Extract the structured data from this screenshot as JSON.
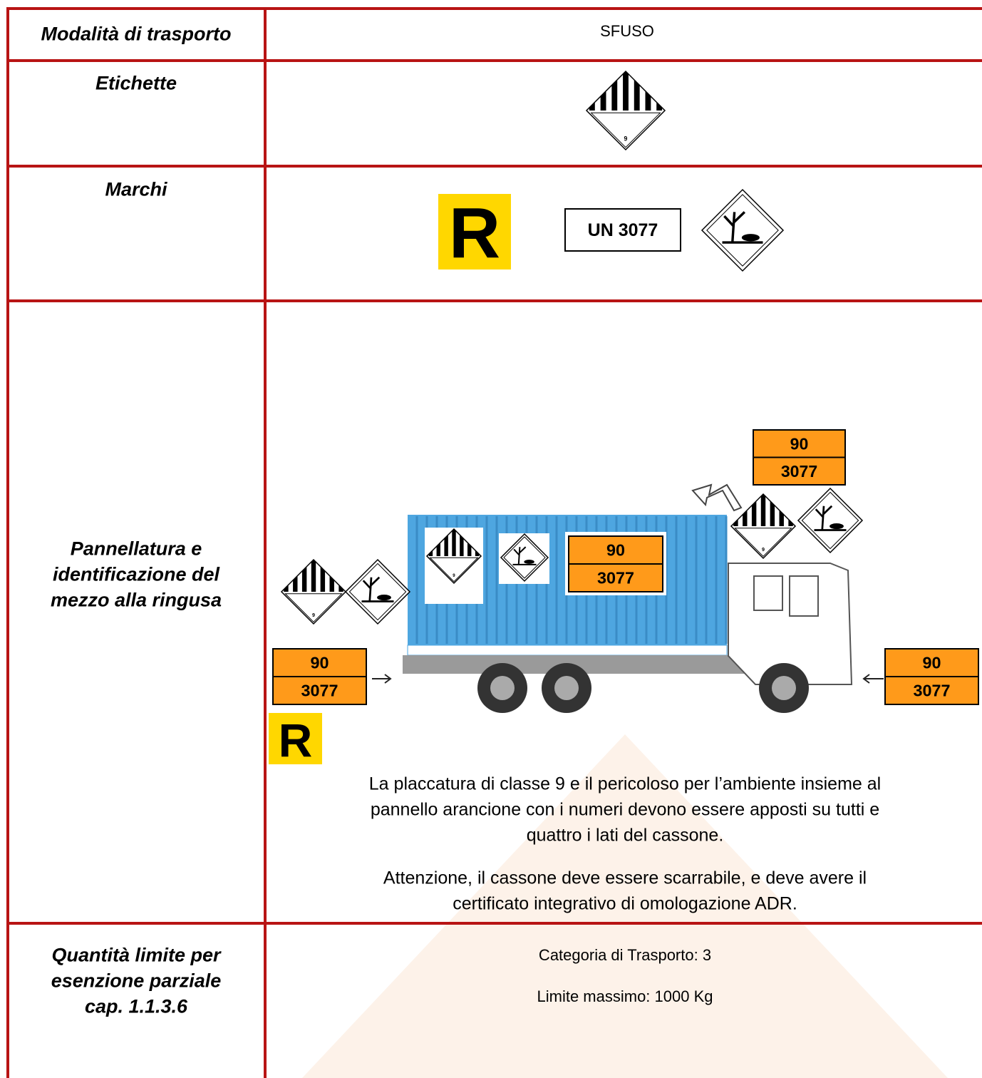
{
  "table": {
    "rows": [
      {
        "label": [
          "Modalità di trasporto"
        ],
        "value": "SFUSO"
      },
      {
        "label": [
          "Etichette"
        ],
        "class_label_number": "9"
      },
      {
        "label": [
          "Marchi"
        ],
        "marks": {
          "orange_r": "R",
          "un_number": "UN 3077"
        }
      },
      {
        "label": [
          "Pannellatura e",
          "identificazione del",
          "mezzo alla ringusa"
        ],
        "figure": {
          "panel_top": "90",
          "panel_bottom": "3077",
          "class_label_number": "9",
          "mark": "R"
        },
        "paragraphs": [
          [
            "La placcatura di classe 9 e il pericoloso per l’ambiente insieme al",
            "pannello arancione con i numeri devono essere apposti su tutti e",
            "quattro i lati del cassone."
          ],
          [
            "Attenzione, il cassone deve essere scarrabile, e deve avere il",
            "certificato integrativo di omologazione ADR."
          ]
        ]
      },
      {
        "label": [
          "Quantità limite per",
          "esenzione parziale",
          "cap. 1.1.3.6"
        ],
        "lines": [
          "Categoria di Trasporto: 3",
          "Limite massimo: 1000 Kg"
        ]
      }
    ]
  }
}
